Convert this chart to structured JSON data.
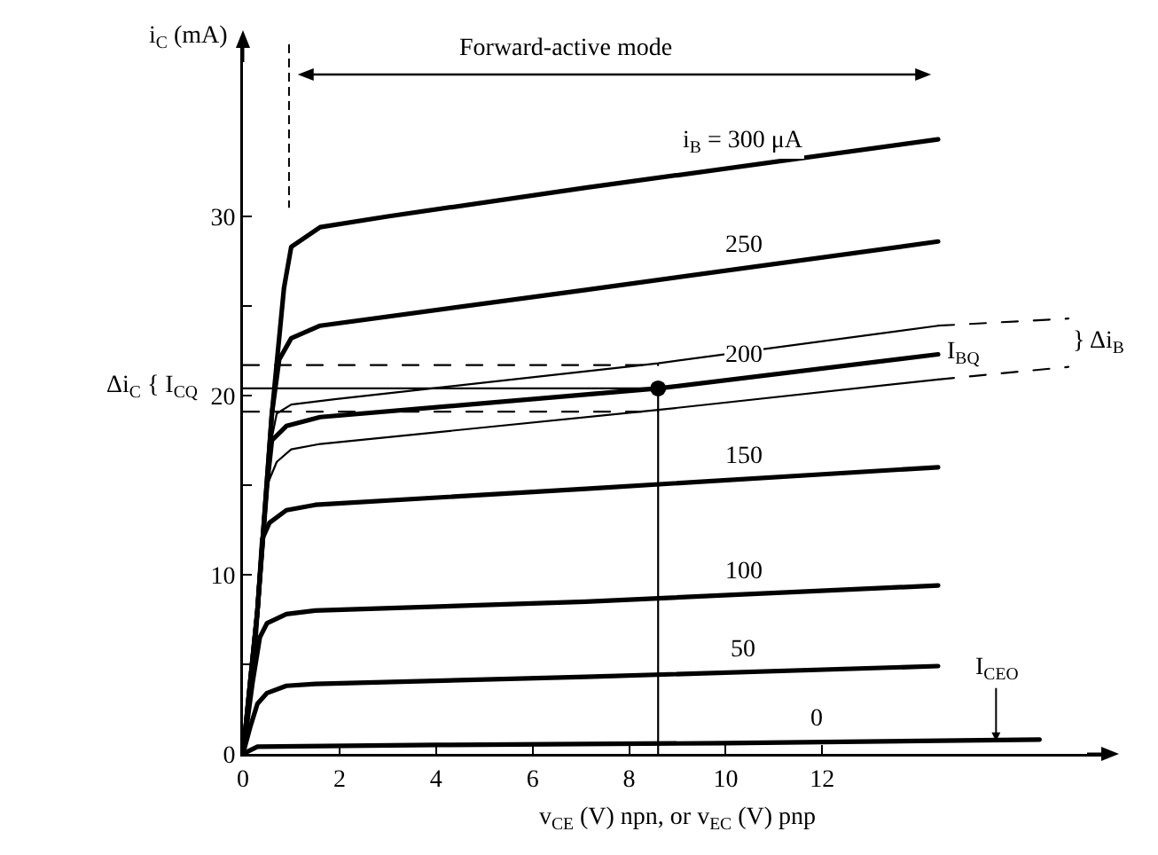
{
  "chart_data": {
    "type": "line",
    "xlabel": "v$_{CE}$ (V) npn, or v$_{EC}$ (V) pnp",
    "ylabel": "i$_{C}$ (mA)",
    "xlim": [
      0,
      18
    ],
    "xticks": [
      0,
      2,
      4,
      6,
      8,
      10,
      12
    ],
    "ylim": [
      0,
      40
    ],
    "yticks": [
      0,
      {
        "value": 5,
        "label": null
      },
      10,
      {
        "value": 15,
        "label": null
      },
      20,
      {
        "value": 25,
        "label": null
      },
      30
    ],
    "series": [
      {
        "name": "i$_{B}$ = 300 μA",
        "color": "#000000",
        "x": [
          0,
          0.3,
          0.6,
          0.85,
          1.0,
          1.6,
          3,
          7.1,
          14.4
        ],
        "values": [
          0,
          8,
          19,
          26,
          28.3,
          29.4,
          30.0,
          31.6,
          34.3
        ]
      },
      {
        "name": "250",
        "color": "#000000",
        "x": [
          0,
          0.3,
          0.6,
          0.75,
          1.0,
          1.6,
          7.1,
          14.4
        ],
        "values": [
          0,
          8,
          19,
          22.0,
          23.2,
          23.9,
          25.9,
          28.6
        ]
      },
      {
        "color": "#000000",
        "x": [
          0,
          0.3,
          0.55,
          0.7,
          1.0,
          1.9,
          8.6,
          14.4
        ],
        "values": [
          0,
          8,
          17,
          19.0,
          19.5,
          19.8,
          21.8,
          23.9
        ]
      },
      {
        "color": "#000000",
        "line_style": "dashed",
        "x": [
          14.4,
          17.1
        ],
        "values": [
          23.9,
          24.3
        ]
      },
      {
        "name": "200",
        "color": "#000000",
        "x": [
          0,
          0.3,
          0.5,
          0.6,
          0.9,
          1.6,
          8.6,
          14.4
        ],
        "values": [
          0,
          8,
          15,
          17.5,
          18.3,
          18.8,
          20.4,
          22.3
        ]
      },
      {
        "color": "#000000",
        "x": [
          0,
          0.3,
          0.5,
          0.7,
          1.0,
          1.6,
          8.6,
          14.4
        ],
        "values": [
          0,
          8,
          15,
          16.3,
          17.0,
          17.3,
          19.2,
          20.9
        ]
      },
      {
        "color": "#000000",
        "line_style": "dashed",
        "x": [
          14.4,
          17.1
        ],
        "values": [
          20.9,
          21.6
        ]
      },
      {
        "name": "150",
        "color": "#000000",
        "x": [
          0,
          0.25,
          0.4,
          0.55,
          0.9,
          1.5,
          7.1,
          14.4
        ],
        "values": [
          0,
          6,
          12,
          12.9,
          13.6,
          13.9,
          14.8,
          16.0
        ]
      },
      {
        "name": "100",
        "color": "#000000",
        "x": [
          0,
          0.2,
          0.35,
          0.5,
          0.9,
          1.5,
          7.1,
          14.4
        ],
        "values": [
          0,
          4,
          6.5,
          7.3,
          7.8,
          8.0,
          8.5,
          9.4
        ]
      },
      {
        "name": "50",
        "color": "#000000",
        "x": [
          0,
          0.15,
          0.3,
          0.5,
          0.9,
          1.5,
          7.1,
          14.4
        ],
        "values": [
          0,
          1.5,
          2.8,
          3.4,
          3.8,
          3.9,
          4.3,
          4.9
        ]
      },
      {
        "name": "0",
        "color": "#000000",
        "x": [
          0,
          0.3,
          4,
          10,
          16.5
        ],
        "values": [
          0,
          0.4,
          0.5,
          0.6,
          0.8
        ]
      },
      {
        "color": "#000000",
        "line_style": "dashed",
        "x": [
          0,
          8.6
        ],
        "values": [
          21.7,
          21.7
        ]
      },
      {
        "color": "#000000",
        "line_style": "dashed",
        "x": [
          0,
          8.6
        ],
        "values": [
          19.1,
          19.1
        ]
      },
      {
        "color": "#000000",
        "x": [
          0,
          8.6
        ],
        "values": [
          20.4,
          20.4
        ]
      },
      {
        "color": "#000000",
        "x": [
          8.6,
          8.6
        ],
        "values": [
          0,
          20.4
        ]
      },
      {
        "type": "scatter",
        "marker": "circle",
        "color": "#000000",
        "x": [
          8.6
        ],
        "values": [
          20.4
        ]
      }
    ],
    "annotations": [
      "Forward-active mode",
      "} Δi$_{B}$",
      "Δi$_{C}$ { I$_{CQ}$",
      {
        "text": "I$_{BQ}$",
        "x": 14.4,
        "y": 22.3
      },
      {
        "text": "I$_{CEO}$",
        "x": 15.6,
        "y": 0.7
      }
    ]
  }
}
